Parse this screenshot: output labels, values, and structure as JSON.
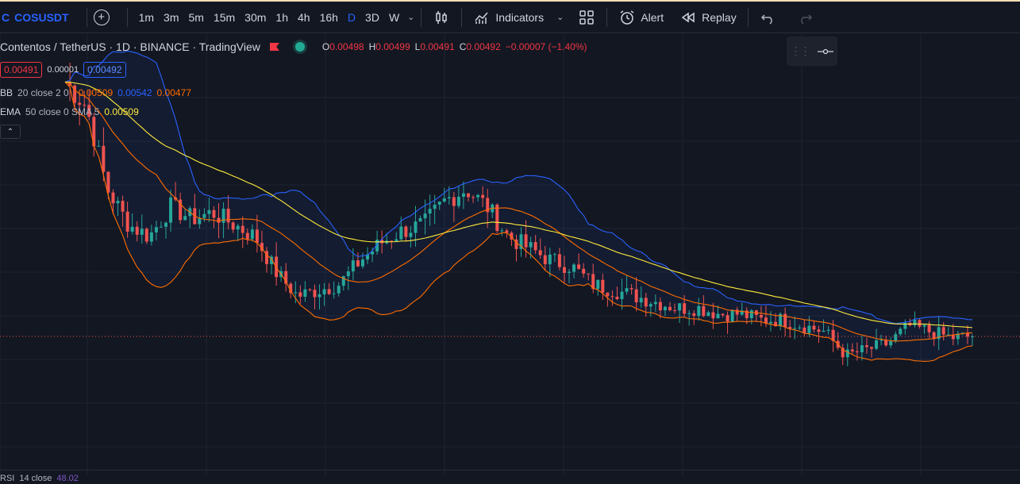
{
  "toolbar": {
    "symbol_prefix": "C",
    "symbol": "COSUSDT",
    "timeframes": [
      "1m",
      "3m",
      "5m",
      "15m",
      "30m",
      "1h",
      "4h",
      "16h",
      "D",
      "3D",
      "W"
    ],
    "active_timeframe": "D",
    "indicators_label": "Indicators",
    "alert_label": "Alert",
    "replay_label": "Replay"
  },
  "legend": {
    "title": "Contentos / TetherUS · 1D · BINANCE · TradingView",
    "o_label": "O",
    "o": "0.00498",
    "h_label": "H",
    "h": "0.00499",
    "l_label": "L",
    "l": "0.00491",
    "c_label": "C",
    "c": "0.00492",
    "change": "−0.00007 (−1.40%)"
  },
  "prices": {
    "bid": "0.00491",
    "spread": "0.00001",
    "ask": "0.00492"
  },
  "indicators": {
    "bb": {
      "name": "BB",
      "params": "20 close 2 0",
      "v1": "0.00509",
      "v2": "0.00542",
      "v3": "0.00477"
    },
    "ema": {
      "name": "EMA",
      "params": "50 close 0 SMA 5",
      "v1": "0.00509"
    }
  },
  "rsi": {
    "name": "RSI",
    "params": "14 close",
    "value": "48.02"
  },
  "colors": {
    "background": "#131722",
    "up": "#26a69a",
    "down": "#ef5350",
    "bb_upper": "#2962ff",
    "bb_basis": "#ff6d00",
    "ema": "#ffeb3b",
    "accent": "#2962ff"
  },
  "chart_data": {
    "type": "candlestick",
    "symbol": "COSUSDT",
    "interval": "1D",
    "last_price": 0.00492,
    "close_series_approx": [
      0.0092,
      0.0088,
      0.0074,
      0.0068,
      0.0066,
      0.0071,
      0.0069,
      0.007,
      0.0068,
      0.0066,
      0.006,
      0.0056,
      0.0057,
      0.0058,
      0.0062,
      0.0065,
      0.0067,
      0.0068,
      0.0072,
      0.0074,
      0.0071,
      0.0066,
      0.0064,
      0.0062,
      0.0061,
      0.0058,
      0.0057,
      0.0056,
      0.0055,
      0.0054,
      0.0054,
      0.0053,
      0.0053,
      0.0052,
      0.0052,
      0.0051,
      0.005,
      0.0046,
      0.0047,
      0.0048,
      0.0051,
      0.005,
      0.0049,
      0.00492
    ]
  }
}
